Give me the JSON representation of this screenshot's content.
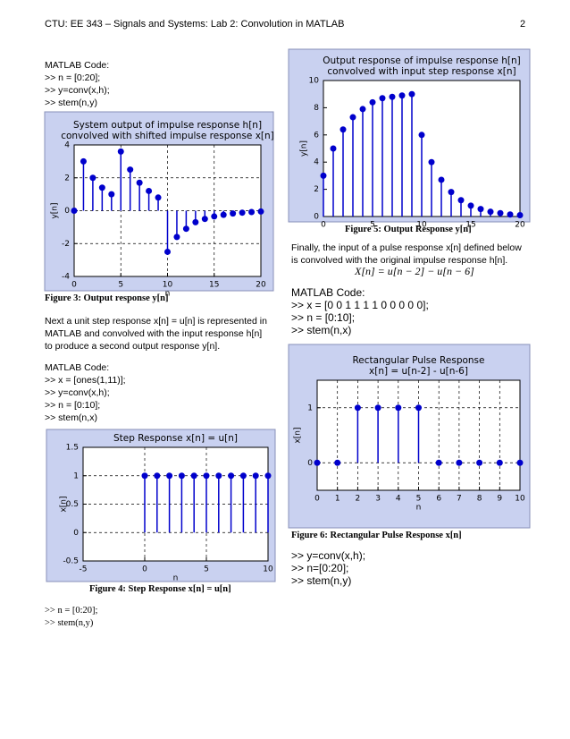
{
  "header": {
    "title": "CTU:  EE 343 – Signals and Systems:  Lab 2:  Convolution in MATLAB",
    "page": "2"
  },
  "left": {
    "code1": [
      "MATLAB Code:",
      ">> n = [0:20];",
      ">> y=conv(x,h);",
      ">> stem(n,y)"
    ],
    "caption3": "Figure 3: Output response y[n]",
    "paragraph": "Next a unit step response x[n] = u[n] is represented in MATLAB and convolved with the input response h[n] to produce a second output response y[n].",
    "code2": [
      "MATLAB Code:",
      ">> x = [ones(1,11)];",
      ">> y=conv(x,h);",
      ">> n = [0:10];",
      ">> stem(n,x)"
    ],
    "caption4": "Figure 4: Step Response x[n] = u[n]",
    "code3": [
      ">> n = [0:20];",
      ">> stem(n,y)"
    ]
  },
  "right": {
    "caption5": "Figure 5: Output Response y[n]",
    "paragraph": "Finally, the input of a pulse response x[n] defined below is convolved with the original impulse response h[n].",
    "equation": "X[n] = u[n − 2] − u[n − 6]",
    "code1": [
      "MATLAB Code:",
      ">> x = [0 0 1 1 1 1 0 0 0 0 0];",
      ">> n = [0:10];",
      ">> stem(n,x)"
    ],
    "caption6": "Figure 6: Rectangular Pulse Response x[n]",
    "code2": [
      ">> y=conv(x,h);",
      ">> n=[0:20];",
      ">> stem(n,y)"
    ]
  },
  "chart_data": [
    {
      "type": "stem",
      "title": [
        "System output of impulse response h[n]",
        "convolved with shifted impulse response x[n]"
      ],
      "x_label": "n",
      "y_label": "y[n]",
      "x": [
        0,
        1,
        2,
        3,
        4,
        5,
        6,
        7,
        8,
        9,
        10,
        11,
        12,
        13,
        14,
        15,
        16,
        17,
        18,
        19,
        20
      ],
      "values": [
        0,
        3,
        2,
        1.4,
        1,
        3.6,
        2.5,
        1.7,
        1.2,
        0.8,
        -2.5,
        -1.6,
        -1.1,
        -0.7,
        -0.5,
        -0.35,
        -0.25,
        -0.17,
        -0.12,
        -0.08,
        -0.05
      ],
      "color": "#0000cc",
      "xlim": [
        0,
        20
      ],
      "xticks": [
        0,
        5,
        10,
        15,
        20
      ],
      "ylim": [
        -4,
        4
      ],
      "yticks": [
        -4,
        -2,
        0,
        2,
        4
      ],
      "grid": true
    },
    {
      "type": "stem",
      "title": [
        "Step Response x[n] = u[n]"
      ],
      "x_label": "n",
      "y_label": "x[n]",
      "x": [
        0,
        1,
        2,
        3,
        4,
        5,
        6,
        7,
        8,
        9,
        10
      ],
      "values": [
        1,
        1,
        1,
        1,
        1,
        1,
        1,
        1,
        1,
        1,
        1
      ],
      "color": "#0000cc",
      "xlim": [
        -5,
        10
      ],
      "xticks": [
        -5,
        0,
        5,
        10
      ],
      "ylim": [
        -0.5,
        1.5
      ],
      "yticks": [
        -0.5,
        0,
        0.5,
        1,
        1.5
      ],
      "grid": true
    },
    {
      "type": "stem",
      "title": [
        "Output response of impulse response h[n]",
        "convolved with input step response x[n]"
      ],
      "y_label": "y[n]",
      "x": [
        0,
        1,
        2,
        3,
        4,
        5,
        6,
        7,
        8,
        9,
        10,
        11,
        12,
        13,
        14,
        15,
        16,
        17,
        18,
        19,
        20
      ],
      "values": [
        3,
        5,
        6.4,
        7.3,
        7.9,
        8.4,
        8.7,
        8.8,
        8.9,
        9,
        6,
        4,
        2.7,
        1.8,
        1.2,
        0.8,
        0.55,
        0.35,
        0.25,
        0.15,
        0.1
      ],
      "color": "#0000cc",
      "xlim": [
        0,
        20
      ],
      "xticks": [
        0,
        5,
        10,
        15,
        20
      ],
      "ylim": [
        0,
        10
      ],
      "yticks": [
        0,
        2,
        4,
        6,
        8,
        10
      ],
      "grid": false
    },
    {
      "type": "stem",
      "title": [
        "Rectangular Pulse Response",
        "x[n] = u[n-2] - u[n-6]"
      ],
      "x_label": "n",
      "y_label": "x[n]",
      "x": [
        0,
        1,
        2,
        3,
        4,
        5,
        6,
        7,
        8,
        9,
        10
      ],
      "values": [
        0,
        0,
        1,
        1,
        1,
        1,
        0,
        0,
        0,
        0,
        0
      ],
      "color": "#0000cc",
      "xlim": [
        0,
        10
      ],
      "xticks": [
        0,
        1,
        2,
        3,
        4,
        5,
        6,
        7,
        8,
        9,
        10
      ],
      "ylim": [
        -0.5,
        1.5
      ],
      "yticks": [
        0,
        1
      ],
      "grid": true
    }
  ]
}
